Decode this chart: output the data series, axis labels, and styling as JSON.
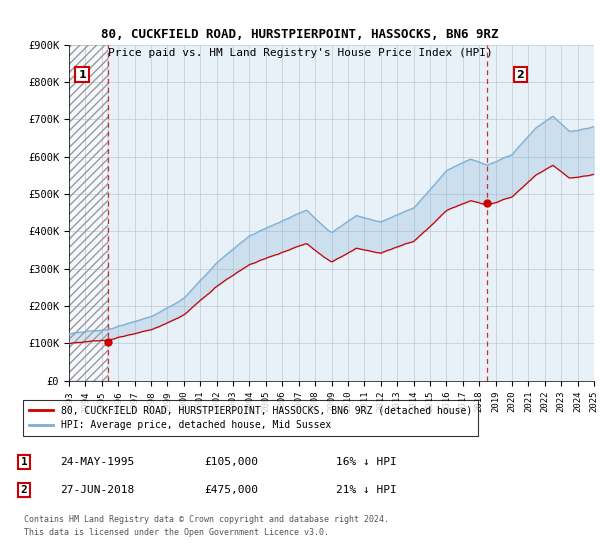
{
  "title": "80, CUCKFIELD ROAD, HURSTPIERPOINT, HASSOCKS, BN6 9RZ",
  "subtitle": "Price paid vs. HM Land Registry's House Price Index (HPI)",
  "ylabel_ticks": [
    "£0",
    "£100K",
    "£200K",
    "£300K",
    "£400K",
    "£500K",
    "£600K",
    "£700K",
    "£800K",
    "£900K"
  ],
  "ytick_values": [
    0,
    100000,
    200000,
    300000,
    400000,
    500000,
    600000,
    700000,
    800000,
    900000
  ],
  "ylim": [
    0,
    900000
  ],
  "xlim": [
    1993,
    2025
  ],
  "sale1_x": 1995.39,
  "sale1_y": 105000,
  "sale2_x": 2018.49,
  "sale2_y": 475000,
  "hpi_color": "#7bafd4",
  "price_color": "#cc0000",
  "marker_color": "#cc0000",
  "fill_color": "#ddeeff",
  "background_color": "#ffffff",
  "plot_bg_color": "#e8f0f8",
  "hatch_color": "#aaaaaa",
  "legend_label1": "80, CUCKFIELD ROAD, HURSTPIERPOINT, HASSOCKS, BN6 9RZ (detached house)",
  "legend_label2": "HPI: Average price, detached house, Mid Sussex",
  "footer1": "Contains HM Land Registry data © Crown copyright and database right 2024.",
  "footer2": "This data is licensed under the Open Government Licence v3.0.",
  "table_row1": [
    "1",
    "24-MAY-1995",
    "£105,000",
    "16% ↓ HPI"
  ],
  "table_row2": [
    "2",
    "27-JUN-2018",
    "£475,000",
    "21% ↓ HPI"
  ]
}
